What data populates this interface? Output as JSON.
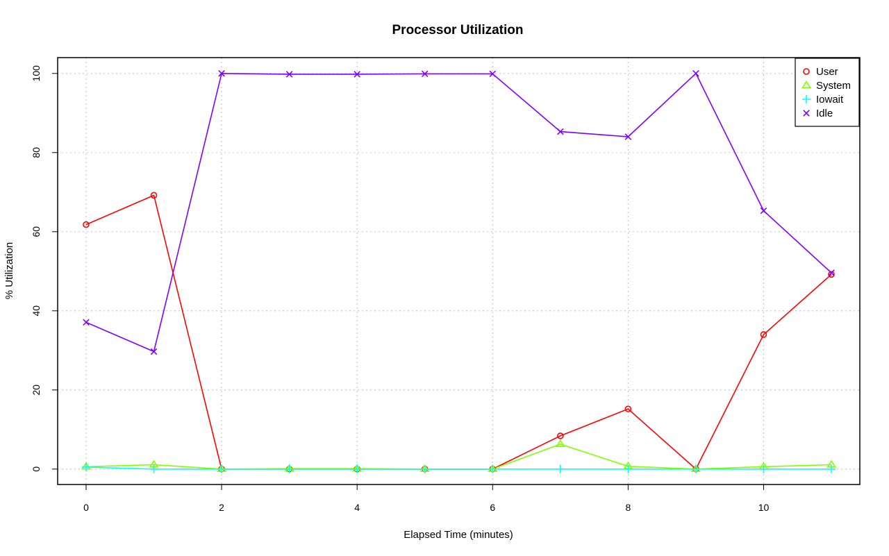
{
  "chart_data": {
    "type": "line",
    "title": "Processor Utilization",
    "xlabel": "Elapsed Time (minutes)",
    "ylabel": "% Utilization",
    "x": [
      0,
      1,
      2,
      3,
      4,
      5,
      6,
      7,
      8,
      9,
      10,
      11
    ],
    "xlim": [
      -0.42,
      11.42
    ],
    "ylim": [
      -3.9,
      104
    ],
    "x_ticks": [
      0,
      2,
      4,
      6,
      8,
      10
    ],
    "y_ticks": [
      0,
      20,
      40,
      60,
      80,
      100
    ],
    "grid": true,
    "legend_position": "top-right",
    "series": [
      {
        "name": "User",
        "color": "#ff0000",
        "marker": "circle",
        "values": [
          61.8,
          69.2,
          0.0,
          0.0,
          0.0,
          0.0,
          0.0,
          8.4,
          15.2,
          0.0,
          34.0,
          49.2
        ]
      },
      {
        "name": "System",
        "color": "#80ff00",
        "marker": "triangle",
        "values": [
          0.6,
          1.1,
          0.0,
          0.1,
          0.1,
          0.0,
          0.0,
          6.3,
          0.7,
          0.0,
          0.6,
          1.1
        ]
      },
      {
        "name": "Iowait",
        "color": "#00ffff",
        "marker": "plus",
        "values": [
          0.5,
          0.0,
          0.0,
          0.0,
          0.0,
          0.0,
          0.0,
          0.0,
          0.0,
          0.0,
          0.0,
          0.0
        ]
      },
      {
        "name": "Idle",
        "color": "#8000ff",
        "marker": "cross",
        "values": [
          37.1,
          29.7,
          100.0,
          99.8,
          99.8,
          99.9,
          99.9,
          85.3,
          84.0,
          100.0,
          65.3,
          49.6
        ]
      }
    ]
  }
}
